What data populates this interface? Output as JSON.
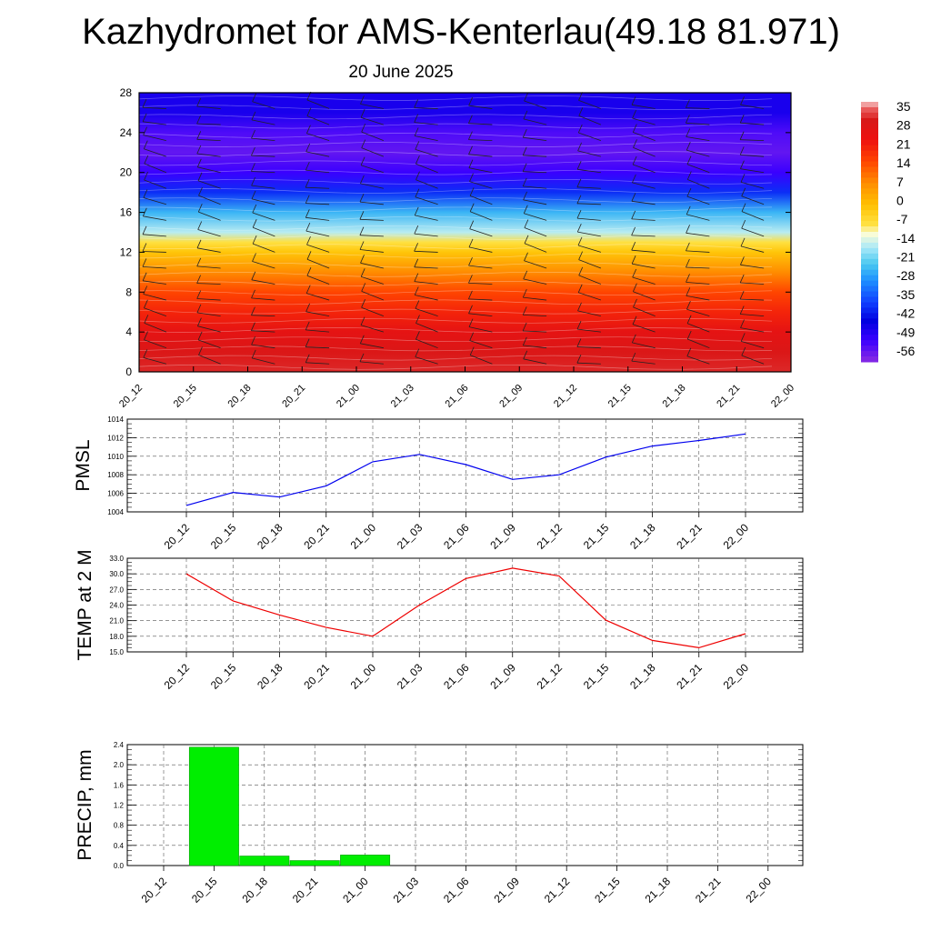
{
  "title": "Kazhydromet for AMS-Kenterlau(49.18 81.971)",
  "subtitle": "20 June 2025",
  "colors": {
    "pmsl_line": "#0000ee",
    "temp_line": "#ee0000",
    "precip_bar": "#00ee00"
  },
  "chart_data": [
    {
      "type": "heatmap",
      "title": "",
      "x_ticks": [
        "20_12",
        "20_15",
        "20_18",
        "20_21",
        "21_00",
        "21_03",
        "21_06",
        "21_09",
        "21_12",
        "21_15",
        "21_18",
        "21_21",
        "22_00"
      ],
      "y_ticks": [
        "0",
        "4",
        "8",
        "12",
        "16",
        "20",
        "24",
        "28"
      ],
      "ylim": [
        0,
        28
      ],
      "colorbar_labels": [
        "35",
        "28",
        "21",
        "14",
        "7",
        "0",
        "-7",
        "-14",
        "-21",
        "-28",
        "-35",
        "-42",
        "-49",
        "-56"
      ],
      "colorbar_range": [
        -60,
        36
      ],
      "temperature_profile": [
        {
          "level": 0,
          "value": 30
        },
        {
          "level": 2,
          "value": 28
        },
        {
          "level": 4,
          "value": 25
        },
        {
          "level": 6,
          "value": 19
        },
        {
          "level": 8,
          "value": 14
        },
        {
          "level": 10,
          "value": 6
        },
        {
          "level": 12,
          "value": -3
        },
        {
          "level": 13,
          "value": -9
        },
        {
          "level": 14,
          "value": -17
        },
        {
          "level": 16,
          "value": -26
        },
        {
          "level": 18,
          "value": -40
        },
        {
          "level": 20,
          "value": -52
        },
        {
          "level": 22,
          "value": -56
        },
        {
          "level": 24,
          "value": -54
        },
        {
          "level": 26,
          "value": -48
        },
        {
          "level": 28,
          "value": -48
        }
      ],
      "overlay": "wind barbs"
    },
    {
      "type": "line",
      "ylabel": "PMSL",
      "x_ticks": [
        "20_12",
        "20_15",
        "20_18",
        "20_21",
        "21_00",
        "21_03",
        "21_06",
        "21_09",
        "21_12",
        "21_15",
        "21_18",
        "21_21",
        "22_00"
      ],
      "y_ticks": [
        "1014",
        "1012",
        "1010",
        "1008",
        "1006",
        "1004"
      ],
      "ylim": [
        1004,
        1014
      ],
      "grid": true,
      "series": [
        {
          "values": [
            1004.7,
            1006.1,
            1005.6,
            1006.8,
            1009.4,
            1010.2,
            1009.1,
            1007.5,
            1008.0,
            1009.9,
            1011.1,
            1011.7,
            1012.4
          ]
        }
      ]
    },
    {
      "type": "line",
      "ylabel": "TEMP at 2 M",
      "x_ticks": [
        "20_12",
        "20_15",
        "20_18",
        "20_21",
        "21_00",
        "21_03",
        "21_06",
        "21_09",
        "21_12",
        "21_15",
        "21_18",
        "21_21",
        "22_00"
      ],
      "y_ticks": [
        "33.0",
        "30.0",
        "27.0",
        "24.0",
        "21.0",
        "18.0",
        "15.0"
      ],
      "ylim": [
        15,
        33
      ],
      "grid": true,
      "series": [
        {
          "values": [
            30.0,
            24.8,
            22.1,
            19.7,
            18.0,
            24.0,
            29.1,
            31.1,
            29.6,
            21.1,
            17.2,
            15.8,
            18.5
          ]
        }
      ]
    },
    {
      "type": "bar",
      "ylabel": "PRECIP, mm",
      "categories": [
        "20_12",
        "20_15",
        "20_18",
        "20_21",
        "21_00",
        "21_03",
        "21_06",
        "21_09",
        "21_12",
        "21_15",
        "21_18",
        "21_21",
        "22_00"
      ],
      "y_ticks": [
        "2.4",
        "2.0",
        "1.6",
        "1.2",
        "0.8",
        "0.4",
        "0.0"
      ],
      "ylim": [
        0,
        2.4
      ],
      "grid": true,
      "values": [
        0,
        2.35,
        0.19,
        0.1,
        0.21,
        0,
        0,
        0,
        0,
        0,
        0,
        0,
        0
      ]
    }
  ]
}
